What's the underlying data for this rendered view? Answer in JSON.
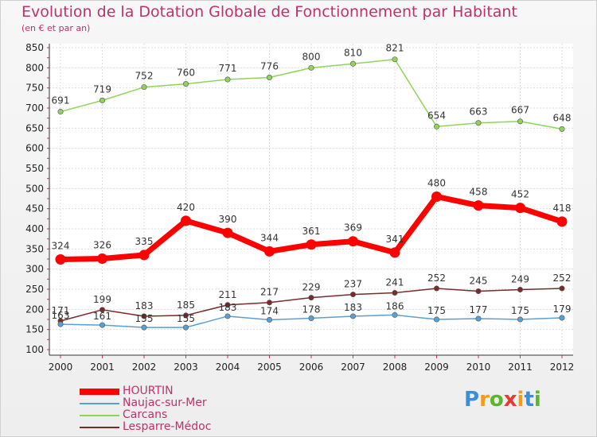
{
  "header": {
    "title": "Evolution de la Dotation Globale de Fonctionnement par Habitant",
    "subtitle": "(en € et par an)"
  },
  "brand": {
    "letters": [
      "P",
      "r",
      "o",
      "x",
      "i",
      "t",
      "i"
    ],
    "colors": [
      "#3a8fd6",
      "#f29b1d",
      "#5cb531",
      "#e53935",
      "#f29b1d",
      "#3a8fd6",
      "#5cb531"
    ]
  },
  "chart_data": {
    "type": "line",
    "x": [
      "2000",
      "2001",
      "2002",
      "2003",
      "2004",
      "2005",
      "2006",
      "2007",
      "2008",
      "2009",
      "2010",
      "2011",
      "2012"
    ],
    "ylim": [
      100,
      850
    ],
    "yticks": [
      100,
      150,
      200,
      250,
      300,
      350,
      400,
      450,
      500,
      550,
      600,
      650,
      700,
      750,
      800,
      850
    ],
    "grid": true,
    "legend_position": "bottom-left",
    "series": [
      {
        "name": "HOURTIN",
        "color": "#ff0000",
        "values": [
          324,
          326,
          335,
          420,
          390,
          344,
          361,
          369,
          341,
          480,
          458,
          452,
          418
        ]
      },
      {
        "name": "Naujac-sur-Mer",
        "color": "#5a9fd4",
        "values": [
          163,
          161,
          155,
          155,
          183,
          174,
          178,
          183,
          186,
          175,
          177,
          175,
          179
        ]
      },
      {
        "name": "Carcans",
        "color": "#8ed45a",
        "values": [
          691,
          719,
          752,
          760,
          771,
          776,
          800,
          810,
          821,
          654,
          663,
          667,
          648
        ]
      },
      {
        "name": "Lesparre-Médoc",
        "color": "#7a2a2a",
        "values": [
          171,
          199,
          183,
          185,
          211,
          217,
          229,
          237,
          241,
          252,
          245,
          249,
          252
        ]
      }
    ]
  }
}
